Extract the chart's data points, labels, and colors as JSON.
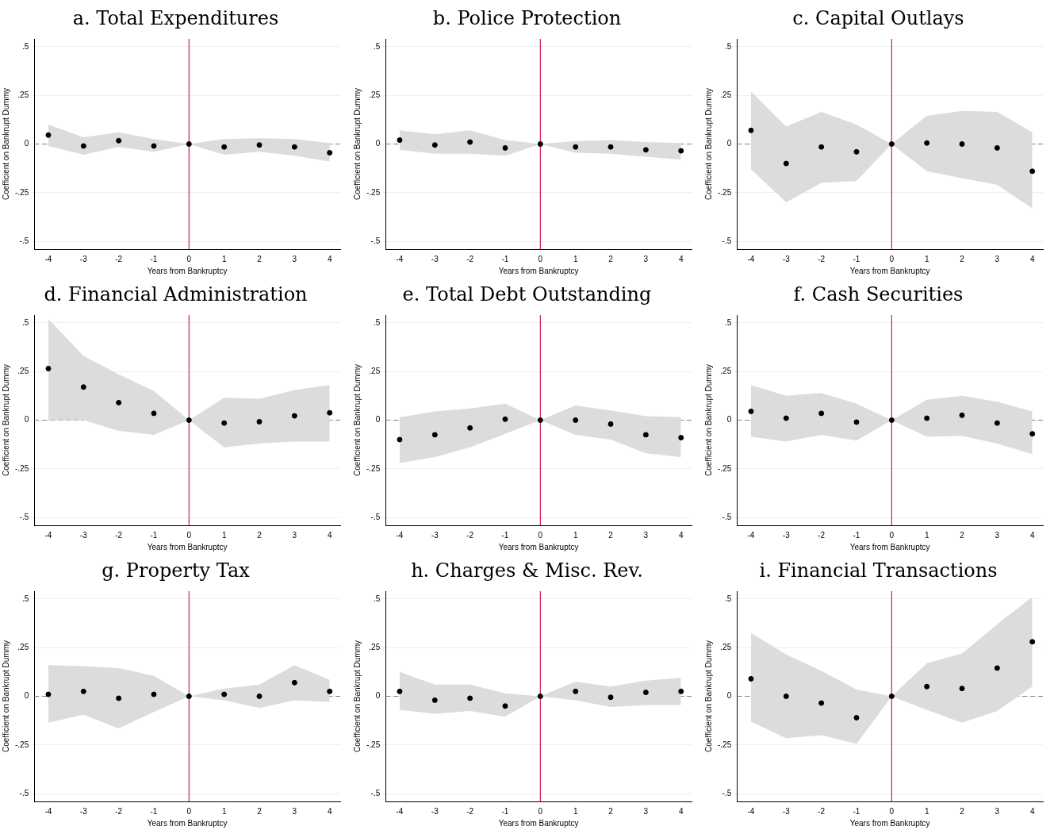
{
  "chart_data": [
    {
      "type": "scatter",
      "title": "a. Total Expenditures",
      "xlabel": "Years from Bankruptcy",
      "ylabel": "Coefficient on Bankrupt Dummy",
      "x": [
        -4,
        -3,
        -2,
        -1,
        0,
        1,
        2,
        3,
        4
      ],
      "xlim": [
        -4.4,
        4.3
      ],
      "xticks": [
        -4,
        -3,
        -2,
        -1,
        0,
        1,
        2,
        3,
        4
      ],
      "ylim": [
        -0.54,
        0.54
      ],
      "yticks": [
        {
          "value": -0.5,
          "label": "-.5"
        },
        {
          "value": -0.25,
          "label": "-.25"
        },
        {
          "value": 0,
          "label": "0"
        },
        {
          "value": 0.25,
          "label": ".25"
        },
        {
          "value": 0.5,
          "label": ".5"
        }
      ],
      "grid": "y",
      "legend": false,
      "marker": "circle",
      "series": [
        {
          "color": "#000000",
          "values": [
            0.046,
            -0.01,
            0.017,
            -0.01,
            0,
            -0.015,
            -0.005,
            -0.015,
            -0.045
          ],
          "lower": [
            -0.01,
            -0.055,
            -0.015,
            -0.04,
            0,
            -0.055,
            -0.04,
            -0.06,
            -0.09
          ],
          "upper": [
            0.1,
            0.035,
            0.06,
            0.025,
            0,
            0.025,
            0.03,
            0.025,
            0.005
          ]
        }
      ],
      "ref_lines": [
        {
          "axis": "y",
          "value": 0,
          "color": "#808080",
          "line_style": "dashed"
        },
        {
          "axis": "x",
          "value": 0,
          "color": "#d81b60",
          "line_style": "solid"
        }
      ]
    },
    {
      "type": "scatter",
      "title": "b. Police Protection",
      "xlabel": "Years from Bankruptcy",
      "ylabel": "Coefficient on Bankrupt Dummy",
      "x": [
        -4,
        -3,
        -2,
        -1,
        0,
        1,
        2,
        3,
        4
      ],
      "xlim": [
        -4.4,
        4.3
      ],
      "xticks": [
        -4,
        -3,
        -2,
        -1,
        0,
        1,
        2,
        3,
        4
      ],
      "ylim": [
        -0.54,
        0.54
      ],
      "yticks": [
        {
          "value": -0.5,
          "label": "-.5"
        },
        {
          "value": -0.25,
          "label": "-.25"
        },
        {
          "value": 0,
          "label": "0"
        },
        {
          "value": 0.25,
          "label": ".25"
        },
        {
          "value": 0.5,
          "label": ".5"
        }
      ],
      "grid": "y",
      "legend": false,
      "marker": "circle",
      "series": [
        {
          "color": "#000000",
          "values": [
            0.02,
            -0.005,
            0.01,
            -0.02,
            0,
            -0.015,
            -0.015,
            -0.03,
            -0.035
          ],
          "lower": [
            -0.03,
            -0.05,
            -0.05,
            -0.06,
            0,
            -0.045,
            -0.05,
            -0.065,
            -0.08
          ],
          "upper": [
            0.07,
            0.05,
            0.07,
            0.02,
            0,
            0.015,
            0.02,
            0.01,
            0.005
          ]
        }
      ],
      "ref_lines": [
        {
          "axis": "y",
          "value": 0,
          "color": "#808080",
          "line_style": "dashed"
        },
        {
          "axis": "x",
          "value": 0,
          "color": "#d81b60",
          "line_style": "solid"
        }
      ]
    },
    {
      "type": "scatter",
      "title": "c. Capital Outlays",
      "xlabel": "Years from Bankruptcy",
      "ylabel": "Coefficient on Bankrupt Dummy",
      "x": [
        -4,
        -3,
        -2,
        -1,
        0,
        1,
        2,
        3,
        4
      ],
      "xlim": [
        -4.4,
        4.3
      ],
      "xticks": [
        -4,
        -3,
        -2,
        -1,
        0,
        1,
        2,
        3,
        4
      ],
      "ylim": [
        -0.54,
        0.54
      ],
      "yticks": [
        {
          "value": -0.5,
          "label": "-.5"
        },
        {
          "value": -0.25,
          "label": "-.25"
        },
        {
          "value": 0,
          "label": "0"
        },
        {
          "value": 0.25,
          "label": ".25"
        },
        {
          "value": 0.5,
          "label": ".5"
        }
      ],
      "grid": "y",
      "legend": false,
      "marker": "circle",
      "series": [
        {
          "color": "#000000",
          "values": [
            0.07,
            -0.1,
            -0.015,
            -0.04,
            0,
            0.005,
            0,
            -0.02,
            -0.14
          ],
          "lower": [
            -0.13,
            -0.3,
            -0.2,
            -0.19,
            0,
            -0.14,
            -0.175,
            -0.21,
            -0.33
          ],
          "upper": [
            0.27,
            0.09,
            0.165,
            0.1,
            0,
            0.145,
            0.17,
            0.165,
            0.06
          ]
        }
      ],
      "ref_lines": [
        {
          "axis": "y",
          "value": 0,
          "color": "#808080",
          "line_style": "dashed"
        },
        {
          "axis": "x",
          "value": 0,
          "color": "#d81b60",
          "line_style": "solid"
        }
      ]
    },
    {
      "type": "scatter",
      "title": "d. Financial Administration",
      "xlabel": "Years from Bankruptcy",
      "ylabel": "Coefficient on Bankrupt Dummy",
      "x": [
        -4,
        -3,
        -2,
        -1,
        0,
        1,
        2,
        3,
        4
      ],
      "xlim": [
        -4.4,
        4.3
      ],
      "xticks": [
        -4,
        -3,
        -2,
        -1,
        0,
        1,
        2,
        3,
        4
      ],
      "ylim": [
        -0.54,
        0.54
      ],
      "yticks": [
        {
          "value": -0.5,
          "label": "-.5"
        },
        {
          "value": -0.25,
          "label": "-.25"
        },
        {
          "value": 0,
          "label": "0"
        },
        {
          "value": 0.25,
          "label": ".25"
        },
        {
          "value": 0.5,
          "label": ".5"
        }
      ],
      "grid": "y",
      "legend": false,
      "marker": "circle",
      "series": [
        {
          "color": "#000000",
          "values": [
            0.265,
            0.17,
            0.09,
            0.035,
            0,
            -0.015,
            -0.008,
            0.022,
            0.038
          ],
          "lower": [
            0,
            0,
            -0.055,
            -0.075,
            0,
            -0.14,
            -0.12,
            -0.11,
            -0.11
          ],
          "upper": [
            0.52,
            0.33,
            0.235,
            0.15,
            0,
            0.115,
            0.11,
            0.155,
            0.18
          ]
        }
      ],
      "ref_lines": [
        {
          "axis": "y",
          "value": 0,
          "color": "#808080",
          "line_style": "dashed"
        },
        {
          "axis": "x",
          "value": 0,
          "color": "#d81b60",
          "line_style": "solid"
        }
      ]
    },
    {
      "type": "scatter",
      "title": "e. Total Debt Outstanding",
      "xlabel": "Years from Bankruptcy",
      "ylabel": "Coefficient on Bankrupt Dummy",
      "x": [
        -4,
        -3,
        -2,
        -1,
        0,
        1,
        2,
        3,
        4
      ],
      "xlim": [
        -4.4,
        4.3
      ],
      "xticks": [
        -4,
        -3,
        -2,
        -1,
        0,
        1,
        2,
        3,
        4
      ],
      "ylim": [
        -0.54,
        0.54
      ],
      "yticks": [
        {
          "value": -0.5,
          "label": "-.5"
        },
        {
          "value": -0.25,
          "label": "-.25"
        },
        {
          "value": 0,
          "label": "0"
        },
        {
          "value": 0.25,
          "label": ".25"
        },
        {
          "value": 0.5,
          "label": ".5"
        }
      ],
      "grid": "y",
      "legend": false,
      "marker": "circle",
      "series": [
        {
          "color": "#000000",
          "values": [
            -0.1,
            -0.075,
            -0.04,
            0.005,
            0,
            0,
            -0.02,
            -0.075,
            -0.09
          ],
          "lower": [
            -0.22,
            -0.19,
            -0.14,
            -0.07,
            0,
            -0.075,
            -0.1,
            -0.17,
            -0.19
          ],
          "upper": [
            0.015,
            0.045,
            0.06,
            0.085,
            0,
            0.075,
            0.05,
            0.02,
            0.015
          ]
        }
      ],
      "ref_lines": [
        {
          "axis": "y",
          "value": 0,
          "color": "#808080",
          "line_style": "dashed"
        },
        {
          "axis": "x",
          "value": 0,
          "color": "#d81b60",
          "line_style": "solid"
        }
      ]
    },
    {
      "type": "scatter",
      "title": "f. Cash Securities",
      "xlabel": "Years from Bankruptcy",
      "ylabel": "Coefficient on Bankrupt Dummy",
      "x": [
        -4,
        -3,
        -2,
        -1,
        0,
        1,
        2,
        3,
        4
      ],
      "xlim": [
        -4.4,
        4.3
      ],
      "xticks": [
        -4,
        -3,
        -2,
        -1,
        0,
        1,
        2,
        3,
        4
      ],
      "ylim": [
        -0.54,
        0.54
      ],
      "yticks": [
        {
          "value": -0.5,
          "label": "-.5"
        },
        {
          "value": -0.25,
          "label": "-.25"
        },
        {
          "value": 0,
          "label": "0"
        },
        {
          "value": 0.25,
          "label": ".25"
        },
        {
          "value": 0.5,
          "label": ".5"
        }
      ],
      "grid": "y",
      "legend": false,
      "marker": "circle",
      "series": [
        {
          "color": "#000000",
          "values": [
            0.045,
            0.01,
            0.035,
            -0.01,
            0,
            0.01,
            0.025,
            -0.015,
            -0.07
          ],
          "lower": [
            -0.085,
            -0.11,
            -0.075,
            -0.105,
            0,
            -0.085,
            -0.08,
            -0.12,
            -0.175
          ],
          "upper": [
            0.18,
            0.125,
            0.14,
            0.085,
            0,
            0.105,
            0.125,
            0.095,
            0.045
          ]
        }
      ],
      "ref_lines": [
        {
          "axis": "y",
          "value": 0,
          "color": "#808080",
          "line_style": "dashed"
        },
        {
          "axis": "x",
          "value": 0,
          "color": "#d81b60",
          "line_style": "solid"
        }
      ]
    },
    {
      "type": "scatter",
      "title": "g. Property Tax",
      "xlabel": "Years from Bankruptcy",
      "ylabel": "Coefficient on Bankrupt Dummy",
      "x": [
        -4,
        -3,
        -2,
        -1,
        0,
        1,
        2,
        3,
        4
      ],
      "xlim": [
        -4.4,
        4.3
      ],
      "xticks": [
        -4,
        -3,
        -2,
        -1,
        0,
        1,
        2,
        3,
        4
      ],
      "ylim": [
        -0.54,
        0.54
      ],
      "yticks": [
        {
          "value": -0.5,
          "label": "-.5"
        },
        {
          "value": -0.25,
          "label": "-.25"
        },
        {
          "value": 0,
          "label": "0"
        },
        {
          "value": 0.25,
          "label": ".25"
        },
        {
          "value": 0.5,
          "label": ".5"
        }
      ],
      "grid": "y",
      "legend": false,
      "marker": "circle",
      "series": [
        {
          "color": "#000000",
          "values": [
            0.01,
            0.025,
            -0.01,
            0.01,
            0,
            0.01,
            0,
            0.07,
            0.025
          ],
          "lower": [
            -0.135,
            -0.095,
            -0.165,
            -0.08,
            0,
            -0.02,
            -0.06,
            -0.02,
            -0.03
          ],
          "upper": [
            0.16,
            0.155,
            0.145,
            0.105,
            0,
            0.04,
            0.06,
            0.16,
            0.085
          ]
        }
      ],
      "ref_lines": [
        {
          "axis": "y",
          "value": 0,
          "color": "#808080",
          "line_style": "dashed"
        },
        {
          "axis": "x",
          "value": 0,
          "color": "#d81b60",
          "line_style": "solid"
        }
      ]
    },
    {
      "type": "scatter",
      "title": "h. Charges & Misc. Rev.",
      "xlabel": "Years from Bankruptcy",
      "ylabel": "Coefficient on Bankrupt Dummy",
      "x": [
        -4,
        -3,
        -2,
        -1,
        0,
        1,
        2,
        3,
        4
      ],
      "xlim": [
        -4.4,
        4.3
      ],
      "xticks": [
        -4,
        -3,
        -2,
        -1,
        0,
        1,
        2,
        3,
        4
      ],
      "ylim": [
        -0.54,
        0.54
      ],
      "yticks": [
        {
          "value": -0.5,
          "label": "-.5"
        },
        {
          "value": -0.25,
          "label": "-.25"
        },
        {
          "value": 0,
          "label": "0"
        },
        {
          "value": 0.25,
          "label": ".25"
        },
        {
          "value": 0.5,
          "label": ".5"
        }
      ],
      "grid": "y",
      "legend": false,
      "marker": "circle",
      "series": [
        {
          "color": "#000000",
          "values": [
            0.025,
            -0.02,
            -0.01,
            -0.05,
            0,
            0.025,
            -0.005,
            0.02,
            0.025
          ],
          "lower": [
            -0.07,
            -0.09,
            -0.075,
            -0.105,
            0,
            -0.02,
            -0.055,
            -0.045,
            -0.045
          ],
          "upper": [
            0.125,
            0.06,
            0.06,
            0.015,
            0,
            0.075,
            0.05,
            0.08,
            0.095
          ]
        }
      ],
      "ref_lines": [
        {
          "axis": "y",
          "value": 0,
          "color": "#808080",
          "line_style": "dashed"
        },
        {
          "axis": "x",
          "value": 0,
          "color": "#d81b60",
          "line_style": "solid"
        }
      ]
    },
    {
      "type": "scatter",
      "title": "i. Financial Transactions",
      "xlabel": "Years from Bankruptcy",
      "ylabel": "Coefficient on Bankrupt Dummy",
      "x": [
        -4,
        -3,
        -2,
        -1,
        0,
        1,
        2,
        3,
        4
      ],
      "xlim": [
        -4.4,
        4.3
      ],
      "xticks": [
        -4,
        -3,
        -2,
        -1,
        0,
        1,
        2,
        3,
        4
      ],
      "ylim": [
        -0.54,
        0.54
      ],
      "yticks": [
        {
          "value": -0.5,
          "label": "-.5"
        },
        {
          "value": -0.25,
          "label": "-.25"
        },
        {
          "value": 0,
          "label": "0"
        },
        {
          "value": 0.25,
          "label": ".25"
        },
        {
          "value": 0.5,
          "label": ".5"
        }
      ],
      "grid": "y",
      "legend": false,
      "marker": "circle",
      "series": [
        {
          "color": "#000000",
          "values": [
            0.09,
            0,
            -0.035,
            -0.11,
            0,
            0.05,
            0.04,
            0.145,
            0.28
          ],
          "lower": [
            -0.13,
            -0.215,
            -0.2,
            -0.245,
            0,
            -0.07,
            -0.135,
            -0.075,
            0.05
          ],
          "upper": [
            0.325,
            0.215,
            0.13,
            0.035,
            0,
            0.17,
            0.22,
            0.37,
            0.51
          ]
        }
      ],
      "ref_lines": [
        {
          "axis": "y",
          "value": 0,
          "color": "#808080",
          "line_style": "dashed"
        },
        {
          "axis": "x",
          "value": 0,
          "color": "#d81b60",
          "line_style": "solid"
        }
      ]
    }
  ]
}
